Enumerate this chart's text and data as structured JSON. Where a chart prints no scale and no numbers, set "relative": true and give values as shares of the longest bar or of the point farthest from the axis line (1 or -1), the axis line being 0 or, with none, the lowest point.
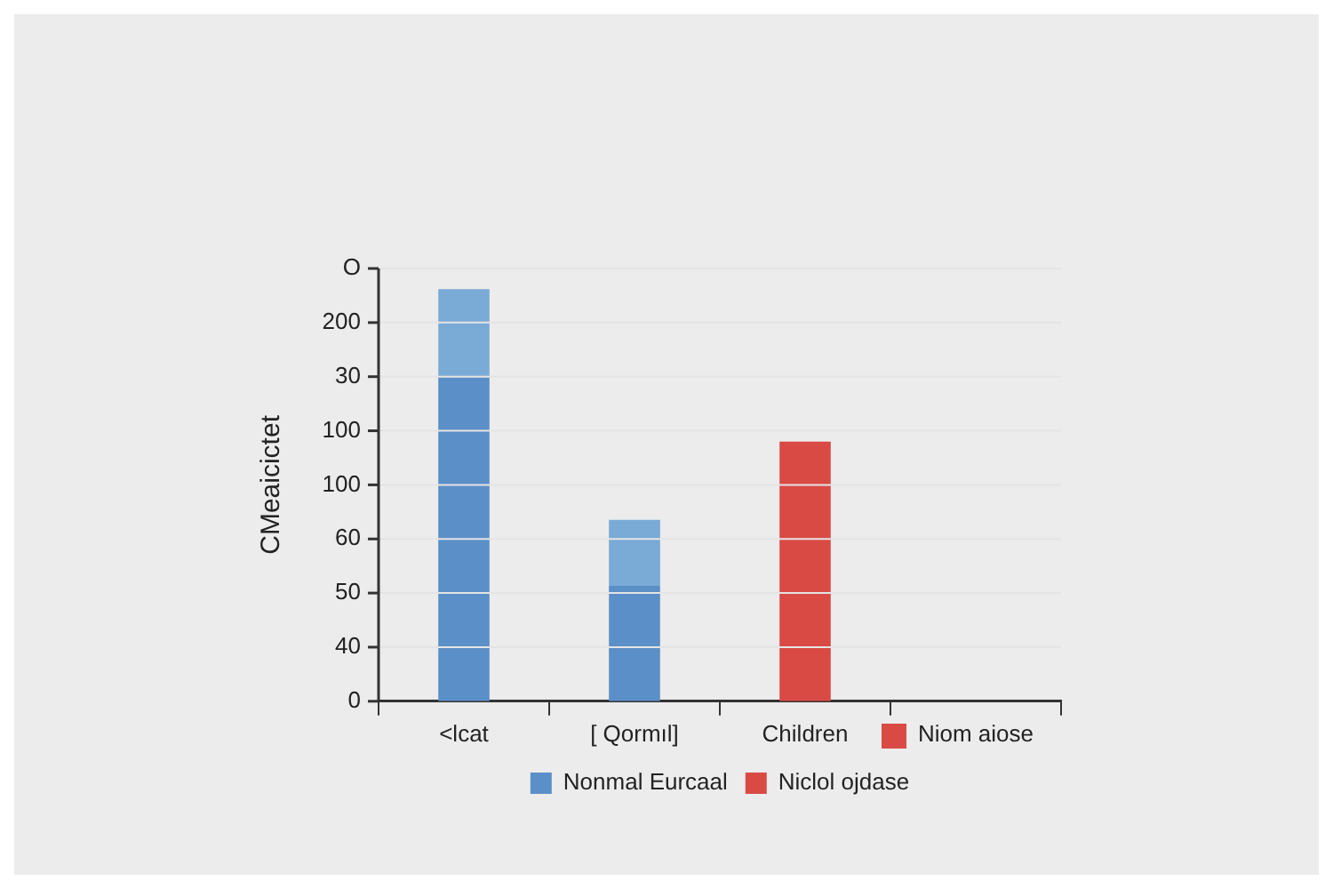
{
  "chart_data": {
    "type": "bar",
    "stacked": true,
    "relative": true,
    "ylabel": "CMeaicictet",
    "categories": [
      "<lcat",
      "[ Qormıl]",
      "Children",
      "Niom aiose"
    ],
    "series": [
      {
        "name": "Nonmal Eurcaal",
        "color": "#5b8fc7",
        "values": [
          0.79,
          0.28,
          null,
          null
        ]
      },
      {
        "color": "#7aaad6",
        "values": [
          0.21,
          0.16,
          null,
          null
        ]
      },
      {
        "name": "Niclol ojdase",
        "color": "#d94a45",
        "values": [
          null,
          null,
          0.63,
          null
        ]
      }
    ],
    "annotations": [
      "0",
      "40",
      "50",
      "60",
      "100",
      "100",
      "30",
      "200",
      "O"
    ],
    "grid": "y",
    "legend": "bottom"
  }
}
